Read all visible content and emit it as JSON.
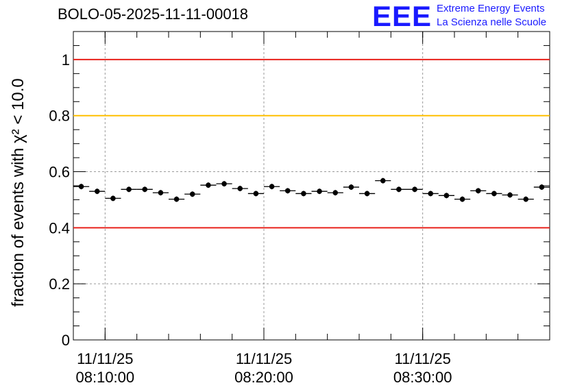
{
  "header": {
    "title": "BOLO-05-2025-11-11-00018",
    "logo_mark": "EEE",
    "logo_line1": "Extreme Energy Events",
    "logo_line2": "La Scienza nelle Scuole"
  },
  "chart_data": {
    "type": "scatter",
    "title": "BOLO-05-2025-11-11-00018",
    "ylabel": "fraction of events with χ² < 10.0",
    "xlabel": "",
    "ylim": [
      0,
      1.1
    ],
    "grid": true,
    "y_ticks": [
      "0",
      "0.2",
      "0.4",
      "0.6",
      "0.8",
      "1"
    ],
    "x_ticks": [
      {
        "date": "11/11/25",
        "time": "08:10:00"
      },
      {
        "date": "11/11/25",
        "time": "08:20:00"
      },
      {
        "date": "11/11/25",
        "time": "08:30:00"
      }
    ],
    "x_range": [
      "08:08:00",
      "08:38:00"
    ],
    "reference_lines": [
      {
        "y": 1.0,
        "color": "#e8201a"
      },
      {
        "y": 0.8,
        "color": "#ffbf00"
      },
      {
        "y": 0.4,
        "color": "#e8201a"
      }
    ],
    "bin_minutes": 1,
    "x": [
      "08:08:00",
      "08:09:00",
      "08:10:00",
      "08:11:00",
      "08:12:00",
      "08:13:00",
      "08:14:00",
      "08:15:00",
      "08:16:00",
      "08:17:00",
      "08:18:00",
      "08:19:00",
      "08:20:00",
      "08:21:00",
      "08:22:00",
      "08:23:00",
      "08:24:00",
      "08:25:00",
      "08:26:00",
      "08:27:00",
      "08:28:00",
      "08:29:00",
      "08:30:00",
      "08:31:00",
      "08:32:00",
      "08:33:00",
      "08:34:00",
      "08:35:00",
      "08:36:00",
      "08:37:00"
    ],
    "values": [
      0.547,
      0.53,
      0.505,
      0.537,
      0.537,
      0.525,
      0.502,
      0.52,
      0.552,
      0.557,
      0.54,
      0.522,
      0.547,
      0.532,
      0.522,
      0.53,
      0.525,
      0.545,
      0.522,
      0.568,
      0.537,
      0.537,
      0.522,
      0.515,
      0.502,
      0.532,
      0.522,
      0.517,
      0.502,
      0.545
    ],
    "marker_color": "#000000"
  }
}
